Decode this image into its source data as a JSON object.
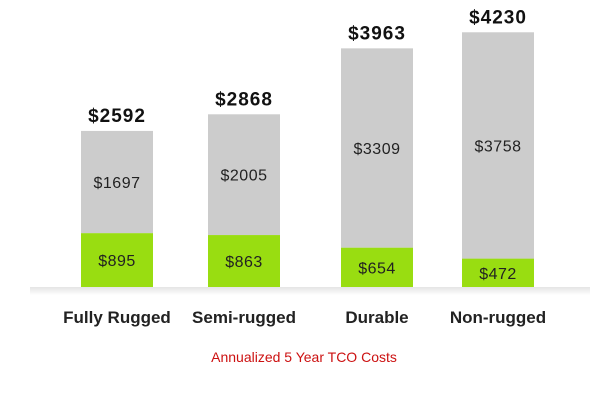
{
  "chart_data": {
    "type": "bar",
    "stacked": true,
    "categories": [
      "Fully Rugged",
      "Semi-rugged",
      "Durable",
      "Non-rugged"
    ],
    "series": [
      {
        "values": [
          895,
          863,
          654,
          472
        ],
        "color": "#99dd11"
      },
      {
        "values": [
          1697,
          2005,
          3309,
          3758
        ],
        "color": "#cccccc"
      }
    ],
    "totals": [
      2592,
      2868,
      3963,
      4230
    ],
    "total_labels": [
      "$2592",
      "$2868",
      "$3963",
      "$4230"
    ],
    "segment_labels": [
      [
        "$895",
        "$863",
        "$654",
        "$472"
      ],
      [
        "$1697",
        "$2005",
        "$3309",
        "$3758"
      ]
    ],
    "caption": "Annualized 5 Year TCO Costs",
    "ylim": [
      0,
      4600
    ]
  }
}
